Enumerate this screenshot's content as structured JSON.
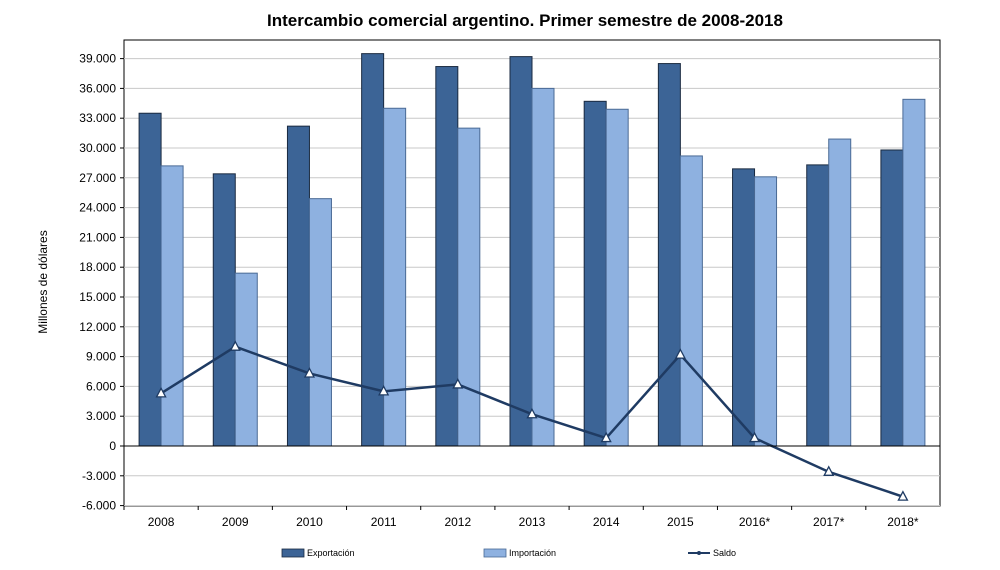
{
  "chart_data": {
    "type": "bar",
    "title": "Intercambio comercial argentino. Primer semestre de 2008-2018",
    "xlabel": "",
    "ylabel": "Millones de dólares",
    "ylim": [
      -6000,
      41000
    ],
    "yticks": [
      "39.000",
      "36.000",
      "33.000",
      "30.000",
      "27.000",
      "24.000",
      "21.000",
      "18.000",
      "15.000",
      "12.000",
      "9.000",
      "6.000",
      "3.000",
      "0",
      "-3.000",
      "-6.000"
    ],
    "ytick_values": [
      39000,
      36000,
      33000,
      30000,
      27000,
      24000,
      21000,
      18000,
      15000,
      12000,
      9000,
      6000,
      3000,
      0,
      -3000,
      -6000
    ],
    "categories": [
      "2008",
      "2009",
      "2010",
      "2011",
      "2012",
      "2013",
      "2014",
      "2015",
      "2016*",
      "2017*",
      "2018*"
    ],
    "series": [
      {
        "name": "Exportación",
        "type": "bar",
        "color": "#3c6496",
        "values": [
          33500,
          27400,
          32200,
          39500,
          38200,
          39200,
          34700,
          38500,
          27900,
          28300,
          29800
        ]
      },
      {
        "name": "Importación",
        "type": "bar",
        "color": "#8eb1e0",
        "values": [
          28200,
          17400,
          24900,
          34000,
          32000,
          36000,
          33900,
          29200,
          27100,
          30900,
          34900
        ]
      },
      {
        "name": "Saldo",
        "type": "line",
        "color": "#1f3b63",
        "values": [
          5300,
          10000,
          7300,
          5500,
          6200,
          3200,
          800,
          9200,
          800,
          -2600,
          -5100
        ]
      }
    ],
    "grid": true,
    "legend_position": "bottom"
  }
}
